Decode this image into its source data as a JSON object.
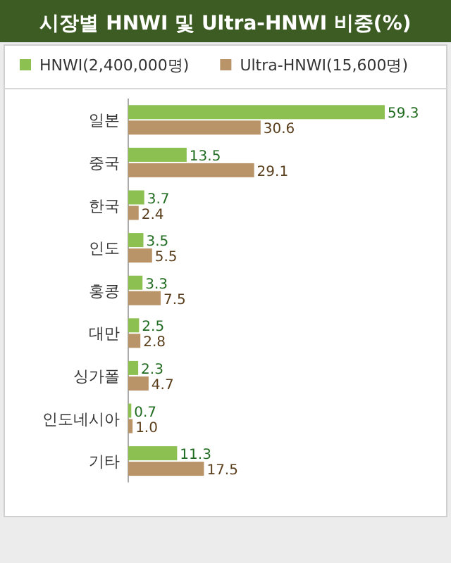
{
  "chart_data": {
    "type": "bar",
    "orientation": "horizontal",
    "title": "시장별 HNWI 및 Ultra-HNWI 비중(%)",
    "legend": "top",
    "categories": [
      "일본",
      "중국",
      "한국",
      "인도",
      "홍콩",
      "대만",
      "싱가폴",
      "인도네시아",
      "기타"
    ],
    "series": [
      {
        "name": "HNWI(2,400,000명)",
        "color": "#8cc152",
        "values": [
          59.3,
          13.5,
          3.7,
          3.5,
          3.3,
          2.5,
          2.3,
          0.7,
          11.3
        ],
        "value_labels": [
          "59.3",
          "13.5",
          "3.7",
          "3.5",
          "3.3",
          "2.5",
          "2.3",
          "0.7",
          "11.3"
        ]
      },
      {
        "name": "Ultra-HNWI(15,600명)",
        "color": "#b89468",
        "values": [
          30.6,
          29.1,
          2.4,
          5.5,
          7.5,
          2.8,
          4.7,
          1.0,
          17.5
        ],
        "value_labels": [
          "30.6",
          "29.1",
          "2.4",
          "5.5",
          "7.5",
          "2.8",
          "4.7",
          "1.0",
          "17.5"
        ]
      }
    ]
  }
}
